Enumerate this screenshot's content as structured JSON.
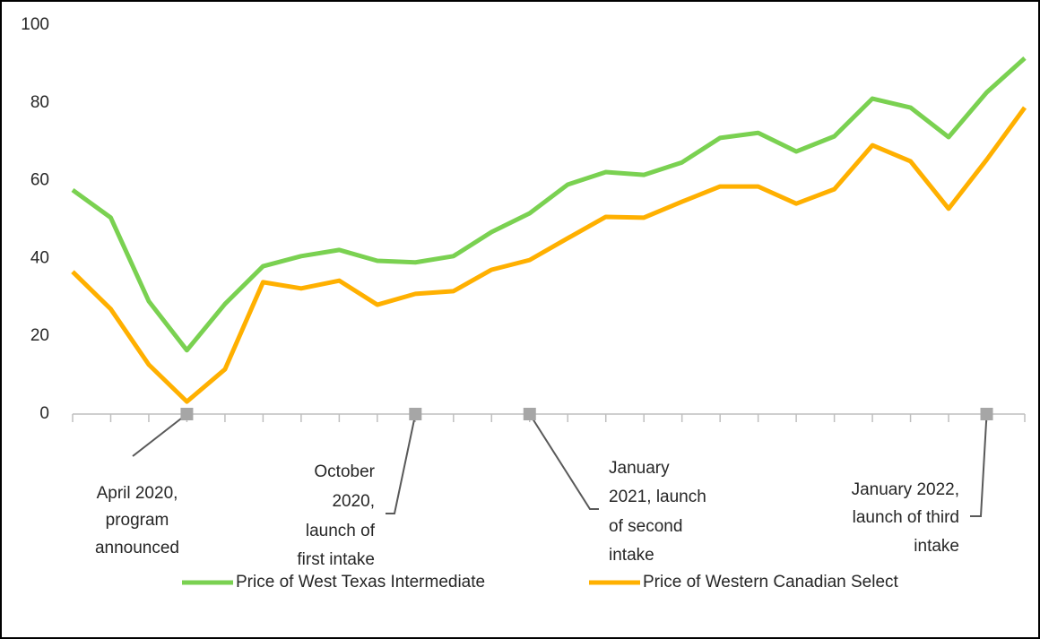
{
  "chart_data": {
    "type": "line",
    "categories": [
      null,
      null,
      null,
      null,
      null,
      null,
      null,
      null,
      null,
      null,
      null,
      null,
      null,
      null,
      null,
      null,
      null,
      null,
      null,
      null,
      null,
      null,
      null,
      null,
      null,
      null
    ],
    "series": [
      {
        "name": "Price of West Texas Intermediate",
        "color": "#7ad151",
        "values": [
          57.6,
          50.5,
          29,
          16.4,
          28.3,
          38,
          40.6,
          42.2,
          39.4,
          39,
          40.6,
          46.8,
          51.6,
          59,
          62.2,
          61.5,
          64.7,
          71,
          72.3,
          67.5,
          71.4,
          81.1,
          78.8,
          71.2,
          82.7,
          91.5
        ]
      },
      {
        "name": "Price of Western Canadian Select",
        "color": "#ffb000",
        "values": [
          36.6,
          27,
          12.7,
          3.2,
          11.5,
          33.9,
          32.3,
          34.3,
          28.1,
          30.9,
          31.6,
          37.1,
          39.6,
          45.2,
          50.7,
          50.5,
          54.6,
          58.5,
          58.5,
          54.1,
          57.8,
          69.1,
          65,
          52.8,
          65.4,
          78.8
        ]
      }
    ],
    "ylim": [
      0,
      100
    ],
    "yticks": [
      0,
      20,
      40,
      60,
      80,
      100
    ],
    "grid": false,
    "legend": "bottom",
    "annotations": [
      {
        "at": 3,
        "lines": [
          "April 2020,",
          "program",
          "announced"
        ]
      },
      {
        "at": 9,
        "lines": [
          "October",
          "2020,",
          "launch of",
          "first intake"
        ]
      },
      {
        "at": 12,
        "lines": [
          "January",
          "2021, launch",
          "of second",
          "intake"
        ]
      },
      {
        "at": 24,
        "lines": [
          "January 2022,",
          "launch of third",
          "intake"
        ]
      }
    ]
  }
}
